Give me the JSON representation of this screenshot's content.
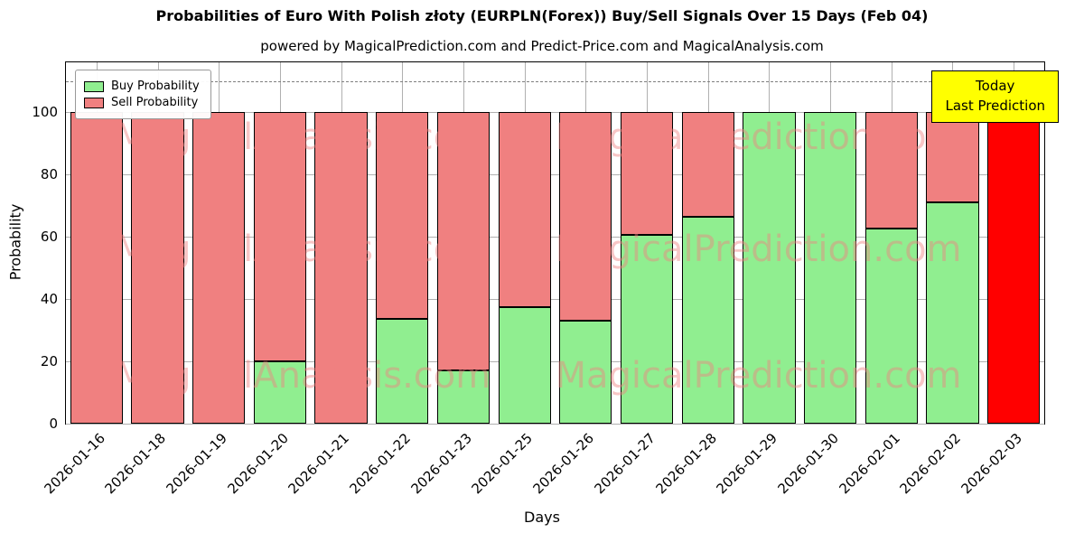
{
  "chart_data": {
    "type": "bar",
    "stacked": true,
    "title": "Probabilities of Euro With Polish złoty (EURPLN(Forex)) Buy/Sell Signals Over 15 Days (Feb 04)",
    "subtitle": "powered by MagicalPrediction.com and Predict-Price.com and MagicalAnalysis.com",
    "xlabel": "Days",
    "ylabel": "Probability",
    "ylim": [
      0,
      116
    ],
    "yticks": [
      0,
      20,
      40,
      60,
      80,
      100
    ],
    "dashed_line_y": 110,
    "grid": true,
    "legend": {
      "position": "top-left",
      "buy_label": "Buy Probability",
      "sell_label": "Sell Probability"
    },
    "colors": {
      "buy": "#90ee90",
      "sell": "#f08080",
      "today": "#ff0000",
      "annotation_bg": "#ffff00"
    },
    "bars": [
      {
        "date": "2026-01-16",
        "buy": 0,
        "sell": 100
      },
      {
        "date": "2026-01-18",
        "buy": 0,
        "sell": 100
      },
      {
        "date": "2026-01-19",
        "buy": 0,
        "sell": 100
      },
      {
        "date": "2026-01-20",
        "buy": 20,
        "sell": 80
      },
      {
        "date": "2026-01-21",
        "buy": 0,
        "sell": 100
      },
      {
        "date": "2026-01-22",
        "buy": 33.5,
        "sell": 66.5
      },
      {
        "date": "2026-01-23",
        "buy": 17,
        "sell": 83
      },
      {
        "date": "2026-01-25",
        "buy": 37.5,
        "sell": 62.5
      },
      {
        "date": "2026-01-26",
        "buy": 33,
        "sell": 67
      },
      {
        "date": "2026-01-27",
        "buy": 60.5,
        "sell": 39.5
      },
      {
        "date": "2026-01-28",
        "buy": 66.5,
        "sell": 33.5
      },
      {
        "date": "2026-01-29",
        "buy": 100,
        "sell": 0
      },
      {
        "date": "2026-01-30",
        "buy": 100,
        "sell": 0
      },
      {
        "date": "2026-02-01",
        "buy": 62.5,
        "sell": 37.5
      },
      {
        "date": "2026-02-02",
        "buy": 71,
        "sell": 29
      },
      {
        "date": "2026-02-03",
        "buy": 0,
        "sell": 0,
        "today": 100
      }
    ],
    "annotation": {
      "line1": "Today",
      "line2": "Last Prediction"
    },
    "watermarks": [
      "MagicalAnalysis.com",
      "MagicalPrediction.com"
    ]
  }
}
